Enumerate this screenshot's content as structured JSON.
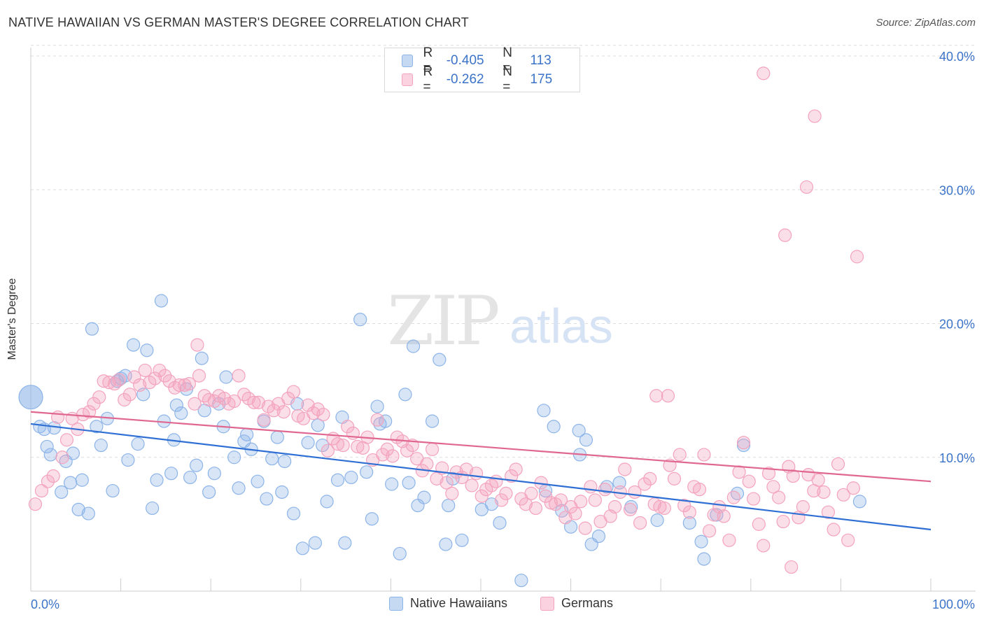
{
  "header": {
    "title": "NATIVE HAWAIIAN VS GERMAN MASTER'S DEGREE CORRELATION CHART",
    "source": "Source: ZipAtlas.com"
  },
  "watermark": {
    "zip": "ZIP",
    "atlas": "atlas"
  },
  "legend": {
    "rows": [
      {
        "r_label": "R =",
        "r_value": "-0.405",
        "n_label": "N =",
        "n_value": "113"
      },
      {
        "r_label": "R =",
        "r_value": "-0.262",
        "n_label": "N =",
        "n_value": "175"
      }
    ],
    "bottom": [
      "Native Hawaiians",
      "Germans"
    ]
  },
  "chart_data": {
    "type": "scatter",
    "title": "NATIVE HAWAIIAN VS GERMAN MASTER'S DEGREE CORRELATION CHART",
    "xlabel": "",
    "ylabel": "Master's Degree",
    "xlim": [
      0,
      100
    ],
    "ylim": [
      0,
      40
    ],
    "x_tick_labels": [
      "0.0%",
      "100.0%"
    ],
    "y_ticks": [
      10,
      20,
      30,
      40
    ],
    "y_tick_labels": [
      "10.0%",
      "20.0%",
      "30.0%",
      "40.0%"
    ],
    "grid": true,
    "legend_position": "top-center",
    "series": [
      {
        "name": "Native Hawaiians",
        "color": "#8db4e8",
        "line_color": "#2f6fd4",
        "trend": {
          "x": [
            0,
            100
          ],
          "y": [
            12.5,
            4.6
          ]
        },
        "points": [
          [
            0,
            14.5
          ],
          [
            1,
            12.3
          ],
          [
            1.5,
            12.1
          ],
          [
            1.8,
            10.8
          ],
          [
            2.2,
            10.2
          ],
          [
            2.6,
            12.2
          ],
          [
            3.4,
            7.4
          ],
          [
            3.9,
            9.7
          ],
          [
            4.4,
            8.1
          ],
          [
            4.7,
            10.3
          ],
          [
            5.3,
            6.1
          ],
          [
            5.7,
            8.3
          ],
          [
            6.4,
            5.8
          ],
          [
            6.8,
            19.6
          ],
          [
            7.3,
            12.3
          ],
          [
            7.8,
            10.9
          ],
          [
            8.5,
            12.9
          ],
          [
            9.1,
            7.5
          ],
          [
            9.6,
            15.7
          ],
          [
            10,
            15.9
          ],
          [
            10.5,
            16.1
          ],
          [
            10.8,
            9.8
          ],
          [
            11.4,
            18.4
          ],
          [
            11.9,
            11
          ],
          [
            12.5,
            14.7
          ],
          [
            12.9,
            18
          ],
          [
            13.5,
            6.2
          ],
          [
            14,
            8.3
          ],
          [
            14.5,
            21.7
          ],
          [
            14.8,
            12.7
          ],
          [
            15.6,
            8.8
          ],
          [
            15.9,
            11.3
          ],
          [
            16.2,
            13.9
          ],
          [
            16.7,
            13.3
          ],
          [
            17.3,
            15.1
          ],
          [
            17.7,
            8.5
          ],
          [
            18.4,
            9.4
          ],
          [
            19,
            17.4
          ],
          [
            19.3,
            13.5
          ],
          [
            19.8,
            7.4
          ],
          [
            20.4,
            8.8
          ],
          [
            20.9,
            14
          ],
          [
            21.4,
            12.3
          ],
          [
            21.7,
            16
          ],
          [
            22.6,
            10
          ],
          [
            23.1,
            7.7
          ],
          [
            23.7,
            11.2
          ],
          [
            24,
            11.7
          ],
          [
            24.5,
            10.6
          ],
          [
            25.2,
            8.2
          ],
          [
            25.9,
            12.7
          ],
          [
            26.2,
            6.9
          ],
          [
            26.8,
            9.9
          ],
          [
            27.4,
            11.5
          ],
          [
            27.9,
            7.4
          ],
          [
            28.2,
            9.7
          ],
          [
            29.2,
            5.8
          ],
          [
            29.6,
            14
          ],
          [
            30.2,
            3.2
          ],
          [
            30.8,
            11.1
          ],
          [
            31.6,
            3.6
          ],
          [
            31.9,
            12.4
          ],
          [
            32.4,
            10.9
          ],
          [
            32.9,
            6.7
          ],
          [
            34.1,
            8.3
          ],
          [
            34.6,
            13
          ],
          [
            34.9,
            3.6
          ],
          [
            35.6,
            8.5
          ],
          [
            36.6,
            20.3
          ],
          [
            37.3,
            8.9
          ],
          [
            37.9,
            5.4
          ],
          [
            38.5,
            13.8
          ],
          [
            38.8,
            12.5
          ],
          [
            39.4,
            12.7
          ],
          [
            40.1,
            8
          ],
          [
            41,
            2.8
          ],
          [
            41.6,
            14.7
          ],
          [
            42,
            8.1
          ],
          [
            42.5,
            18.3
          ],
          [
            43,
            6.4
          ],
          [
            43.7,
            7
          ],
          [
            44.6,
            12.7
          ],
          [
            45.4,
            17.3
          ],
          [
            46.1,
            3.5
          ],
          [
            46.4,
            6.4
          ],
          [
            46.9,
            8.4
          ],
          [
            47.9,
            3.8
          ],
          [
            50.1,
            6.1
          ],
          [
            51.2,
            6.5
          ],
          [
            52.1,
            5.1
          ],
          [
            54.5,
            0.8
          ],
          [
            57,
            13.5
          ],
          [
            57.2,
            7.5
          ],
          [
            58.1,
            12.3
          ],
          [
            59,
            6
          ],
          [
            60,
            4.8
          ],
          [
            60.9,
            12
          ],
          [
            61,
            10.2
          ],
          [
            61.7,
            11.3
          ],
          [
            62.3,
            3.5
          ],
          [
            63.1,
            4.1
          ],
          [
            64,
            7.8
          ],
          [
            65.4,
            8.1
          ],
          [
            66.7,
            6.3
          ],
          [
            69.6,
            5.3
          ],
          [
            73.2,
            5.1
          ],
          [
            74.5,
            3.7
          ],
          [
            74.8,
            2.4
          ],
          [
            76.2,
            5.7
          ],
          [
            78.5,
            7.3
          ],
          [
            79.2,
            10.9
          ],
          [
            92.1,
            6.7
          ]
        ]
      },
      {
        "name": "Germans",
        "color": "#f4a3bd",
        "line_color": "#e06890",
        "trend": {
          "x": [
            0,
            100
          ],
          "y": [
            13.4,
            8.2
          ]
        },
        "points": [
          [
            0.5,
            6.5
          ],
          [
            1.2,
            7.5
          ],
          [
            1.9,
            8.2
          ],
          [
            2.5,
            8.6
          ],
          [
            3,
            13
          ],
          [
            3.5,
            10
          ],
          [
            4,
            11.3
          ],
          [
            4.6,
            12.9
          ],
          [
            5.2,
            12.1
          ],
          [
            5.8,
            13.2
          ],
          [
            6.5,
            13.4
          ],
          [
            7,
            14
          ],
          [
            7.6,
            14.5
          ],
          [
            8.1,
            15.7
          ],
          [
            8.7,
            15.6
          ],
          [
            9.3,
            15.5
          ],
          [
            9.8,
            15.8
          ],
          [
            10.4,
            14.3
          ],
          [
            11,
            14.7
          ],
          [
            11.5,
            16
          ],
          [
            12.1,
            15.4
          ],
          [
            12.7,
            16.5
          ],
          [
            13.2,
            15.6
          ],
          [
            13.8,
            15.9
          ],
          [
            14.3,
            16.5
          ],
          [
            14.9,
            16.1
          ],
          [
            15.4,
            15.7
          ],
          [
            16,
            15.2
          ],
          [
            16.5,
            15.4
          ],
          [
            17.1,
            15.4
          ],
          [
            17.6,
            15.5
          ],
          [
            18.2,
            14
          ],
          [
            18.7,
            16.1
          ],
          [
            19.3,
            14.6
          ],
          [
            19.8,
            14.3
          ],
          [
            20.4,
            14.2
          ],
          [
            20.9,
            14.6
          ],
          [
            21.5,
            14.4
          ],
          [
            22,
            14
          ],
          [
            22.6,
            14.2
          ],
          [
            23.1,
            16.1
          ],
          [
            23.7,
            14.7
          ],
          [
            24.2,
            14.4
          ],
          [
            24.8,
            14.1
          ],
          [
            25.3,
            14.1
          ],
          [
            25.9,
            12.8
          ],
          [
            26.4,
            13.8
          ],
          [
            27,
            13.5
          ],
          [
            27.5,
            14
          ],
          [
            28.1,
            13.4
          ],
          [
            28.6,
            14.4
          ],
          [
            29.2,
            14.9
          ],
          [
            29.7,
            13.1
          ],
          [
            30.3,
            12.9
          ],
          [
            30.8,
            13.9
          ],
          [
            31.4,
            13.3
          ],
          [
            31.9,
            13.6
          ],
          [
            32.5,
            13.2
          ],
          [
            33,
            10.5
          ],
          [
            33.6,
            11.4
          ],
          [
            34.1,
            11
          ],
          [
            34.7,
            10.9
          ],
          [
            35.2,
            12.3
          ],
          [
            35.8,
            11.8
          ],
          [
            36.3,
            10.8
          ],
          [
            36.9,
            10.7
          ],
          [
            37.4,
            11.5
          ],
          [
            38,
            9.8
          ],
          [
            38.5,
            12.8
          ],
          [
            39.1,
            10.2
          ],
          [
            39.6,
            10.6
          ],
          [
            40.2,
            10.1
          ],
          [
            40.7,
            11.5
          ],
          [
            41.3,
            11.2
          ],
          [
            41.8,
            10.5
          ],
          [
            42.4,
            10.9
          ],
          [
            42.9,
            9.9
          ],
          [
            43.5,
            9
          ],
          [
            44,
            9.5
          ],
          [
            44.6,
            10.6
          ],
          [
            45.1,
            8.4
          ],
          [
            45.7,
            9.2
          ],
          [
            46.2,
            8.1
          ],
          [
            46.8,
            7.3
          ],
          [
            47.3,
            8.9
          ],
          [
            47.9,
            8.5
          ],
          [
            48.4,
            9.1
          ],
          [
            49,
            7.9
          ],
          [
            49.5,
            8.8
          ],
          [
            50.1,
            7.1
          ],
          [
            50.6,
            7.6
          ],
          [
            51.2,
            7.9
          ],
          [
            51.7,
            8.2
          ],
          [
            52.3,
            6.8
          ],
          [
            52.8,
            7.3
          ],
          [
            53.4,
            8.6
          ],
          [
            53.9,
            9.1
          ],
          [
            54.5,
            6.9
          ],
          [
            55,
            6.5
          ],
          [
            55.6,
            7.3
          ],
          [
            56.1,
            6.2
          ],
          [
            56.7,
            8.1
          ],
          [
            57.2,
            7.1
          ],
          [
            57.8,
            6.6
          ],
          [
            58.3,
            6.5
          ],
          [
            58.9,
            6.8
          ],
          [
            59.4,
            5.5
          ],
          [
            60,
            6.3
          ],
          [
            60.5,
            5.8
          ],
          [
            61.1,
            6.7
          ],
          [
            61.6,
            4.7
          ],
          [
            62.2,
            7.8
          ],
          [
            62.7,
            6.8
          ],
          [
            63.3,
            5.2
          ],
          [
            63.8,
            7.6
          ],
          [
            64.4,
            5.6
          ],
          [
            64.9,
            6.3
          ],
          [
            65.5,
            7.4
          ],
          [
            66,
            9.1
          ],
          [
            66.6,
            6.1
          ],
          [
            67.1,
            7.4
          ],
          [
            67.7,
            5.1
          ],
          [
            68.2,
            8
          ],
          [
            68.8,
            8.4
          ],
          [
            69.3,
            6.5
          ],
          [
            69.9,
            6.3
          ],
          [
            70.4,
            6.2
          ],
          [
            71,
            9.4
          ],
          [
            71.5,
            8.4
          ],
          [
            72.1,
            10.2
          ],
          [
            72.6,
            6.4
          ],
          [
            73.2,
            5.9
          ],
          [
            73.7,
            7.8
          ],
          [
            74.3,
            7.6
          ],
          [
            74.8,
            10.2
          ],
          [
            75.4,
            4.5
          ],
          [
            75.9,
            5.7
          ],
          [
            76.5,
            6.3
          ],
          [
            77,
            5.6
          ],
          [
            77.6,
            3.8
          ],
          [
            78.1,
            7
          ],
          [
            78.7,
            8.9
          ],
          [
            79.2,
            11.1
          ],
          [
            79.8,
            8.2
          ],
          [
            80.3,
            6.9
          ],
          [
            80.9,
            5
          ],
          [
            81.4,
            3.4
          ],
          [
            82,
            8.8
          ],
          [
            82.5,
            7.8
          ],
          [
            83.1,
            7
          ],
          [
            83.6,
            5.2
          ],
          [
            84.2,
            9.3
          ],
          [
            84.7,
            8.6
          ],
          [
            85.3,
            5.5
          ],
          [
            85.8,
            6.3
          ],
          [
            86.4,
            8.7
          ],
          [
            87,
            7.5
          ],
          [
            87.5,
            8.3
          ],
          [
            88.1,
            7.4
          ],
          [
            88.6,
            5.9
          ],
          [
            89.2,
            4.6
          ],
          [
            89.7,
            9.5
          ],
          [
            90.3,
            7.2
          ],
          [
            90.8,
            3.8
          ],
          [
            91.4,
            7.7
          ],
          [
            18.5,
            18.4
          ],
          [
            69.5,
            14.6
          ],
          [
            70.8,
            14.6
          ],
          [
            81.4,
            38.7
          ],
          [
            86.2,
            30.2
          ],
          [
            87.1,
            35.5
          ],
          [
            83.8,
            26.6
          ],
          [
            91.8,
            25
          ],
          [
            84.5,
            1.8
          ]
        ]
      }
    ]
  }
}
